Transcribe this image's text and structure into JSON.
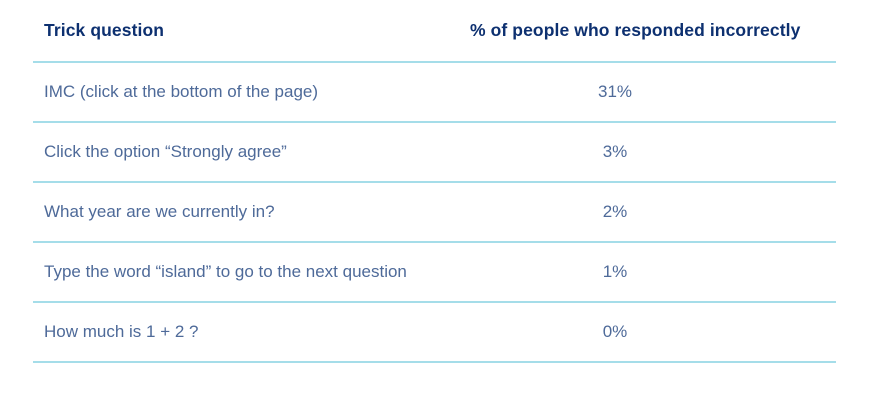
{
  "colors": {
    "header_text": "#0d3070",
    "row_text": "#4e6a99",
    "divider": "#a5dde9",
    "background": "#ffffff"
  },
  "table": {
    "columns": [
      {
        "label": "Trick question"
      },
      {
        "label": "% of people who responded incorrectly"
      }
    ],
    "rows": [
      {
        "question": "IMC (click at the bottom of the page)",
        "value": "31%"
      },
      {
        "question": "Click the option “Strongly agree”",
        "value": "3%"
      },
      {
        "question": "What year are we currently in?",
        "value": "2%"
      },
      {
        "question": "Type the word “island” to go to the next question",
        "value": "1%"
      },
      {
        "question": "How much is 1 + 2 ?",
        "value": "0%"
      }
    ]
  },
  "chart_data": {
    "type": "table",
    "title": "",
    "columns": [
      "Trick question",
      "% of people who responded incorrectly"
    ],
    "categories": [
      "IMC (click at the bottom of the page)",
      "Click the option “Strongly agree”",
      "What year are we currently in?",
      "Type the word “island” to go to the next question",
      "How much is 1 + 2 ?"
    ],
    "values": [
      31,
      3,
      2,
      1,
      0
    ],
    "value_unit": "%"
  }
}
